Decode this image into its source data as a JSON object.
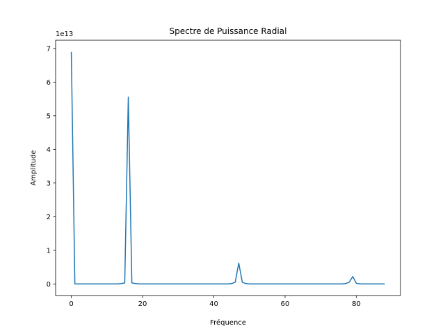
{
  "chart_data": {
    "type": "line",
    "title": "Spectre de Puissance Radial",
    "xlabel": "Fréquence",
    "ylabel": "Amplitude",
    "y_scale_label": "1e13",
    "y_multiplier": 10000000000000.0,
    "xlim": [
      -4.4,
      92.4
    ],
    "ylim": [
      -0.345,
      7.245
    ],
    "xticks": [
      0,
      20,
      40,
      60,
      80
    ],
    "yticks": [
      0,
      1,
      2,
      3,
      4,
      5,
      6,
      7
    ],
    "grid": false,
    "line_color": "#1f77b4",
    "series": [
      {
        "x": [
          0,
          1,
          2,
          3,
          4,
          5,
          6,
          7,
          8,
          9,
          10,
          11,
          12,
          13,
          14,
          15,
          16,
          17,
          18,
          19,
          20,
          21,
          22,
          23,
          24,
          25,
          26,
          27,
          28,
          29,
          30,
          31,
          32,
          33,
          34,
          35,
          36,
          37,
          38,
          39,
          40,
          41,
          42,
          43,
          44,
          45,
          46,
          47,
          48,
          49,
          50,
          51,
          52,
          53,
          54,
          55,
          56,
          57,
          58,
          59,
          60,
          61,
          62,
          63,
          64,
          65,
          66,
          67,
          68,
          69,
          70,
          71,
          72,
          73,
          74,
          75,
          76,
          77,
          78,
          79,
          80,
          81,
          82,
          83,
          84,
          85,
          86,
          87,
          88
        ],
        "y": [
          6.9,
          0.0,
          0.0,
          0.0,
          0.0,
          0.0,
          0.0,
          0.0,
          0.0,
          0.0,
          0.0,
          0.0,
          0.0,
          0.0,
          0.01,
          0.03,
          5.55,
          0.03,
          0.01,
          0.0,
          0.0,
          0.0,
          0.0,
          0.0,
          0.0,
          0.0,
          0.0,
          0.0,
          0.0,
          0.0,
          0.0,
          0.0,
          0.0,
          0.0,
          0.0,
          0.0,
          0.0,
          0.0,
          0.0,
          0.0,
          0.0,
          0.0,
          0.0,
          0.0,
          0.0,
          0.01,
          0.05,
          0.62,
          0.05,
          0.01,
          0.0,
          0.0,
          0.0,
          0.0,
          0.0,
          0.0,
          0.0,
          0.0,
          0.0,
          0.0,
          0.0,
          0.0,
          0.0,
          0.0,
          0.0,
          0.0,
          0.0,
          0.0,
          0.0,
          0.0,
          0.0,
          0.0,
          0.0,
          0.0,
          0.0,
          0.0,
          0.0,
          0.01,
          0.05,
          0.22,
          0.02,
          0.0,
          0.0,
          0.0,
          0.0,
          0.0,
          0.0,
          0.0,
          0.0
        ]
      }
    ]
  }
}
